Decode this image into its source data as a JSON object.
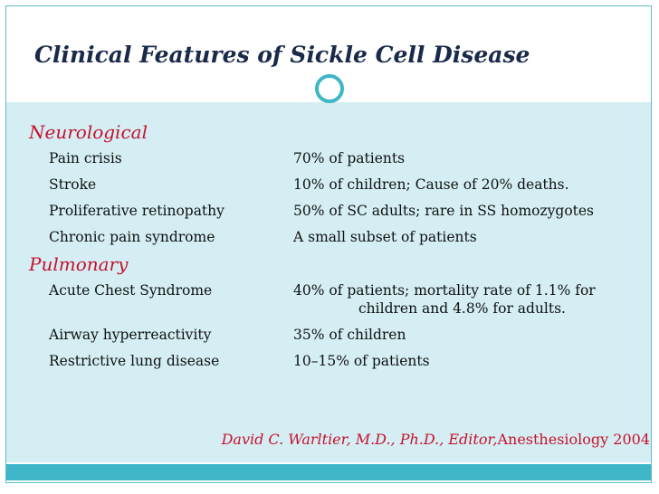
{
  "title": "Clinical Features of Sickle Cell Disease",
  "sections": [
    {
      "heading": "Neurological",
      "items": [
        {
          "feature": "Pain crisis",
          "detail": [
            "70% of patients"
          ]
        },
        {
          "feature": "Stroke",
          "detail": [
            "10% of children;  Cause of 20% deaths."
          ]
        },
        {
          "feature": "Proliferative retinopathy",
          "detail": [
            "50% of SC adults; rare in SS homozygotes"
          ]
        },
        {
          "feature": "Chronic pain syndrome",
          "detail": [
            "A small subset of patients"
          ]
        }
      ]
    },
    {
      "heading": "Pulmonary",
      "items": [
        {
          "feature": "Acute Chest Syndrome",
          "detail": [
            "40% of patients; mortality rate of 1.1% for",
            "children and 4.8% for adults."
          ]
        },
        {
          "feature": "Airway hyperreactivity",
          "detail": [
            "35% of children"
          ]
        },
        {
          "feature": "Restrictive lung disease",
          "detail": [
            "10–15% of patients"
          ]
        }
      ]
    }
  ],
  "citation": {
    "author": "David C. Warltier, M.D., Ph.D., Editor,",
    "source": "Anesthesiology 2004"
  }
}
